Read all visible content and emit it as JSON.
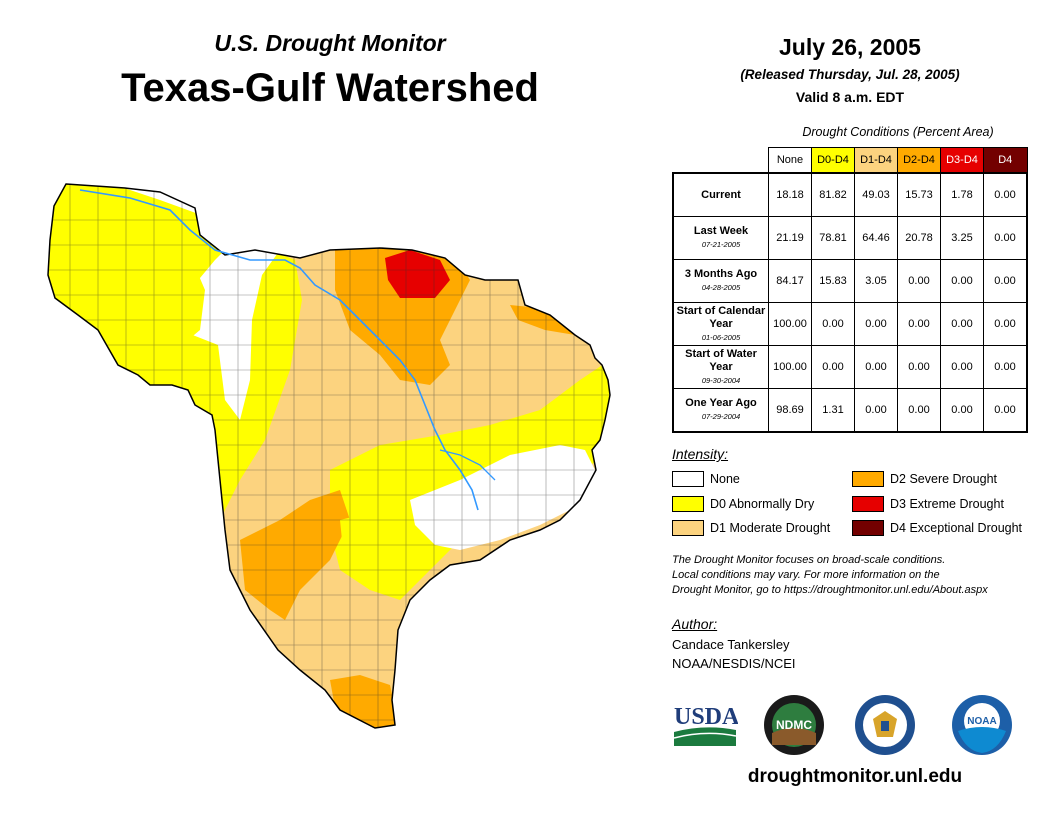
{
  "header": {
    "subtitle": "U.S. Drought Monitor",
    "title": "Texas-Gulf Watershed",
    "date": "July 26, 2005",
    "released": "(Released Thursday, Jul. 28, 2005)",
    "valid": "Valid 8 a.m. EDT"
  },
  "conditions": {
    "title": "Drought Conditions (Percent Area)",
    "columns": [
      "None",
      "D0-D4",
      "D1-D4",
      "D2-D4",
      "D3-D4",
      "D4"
    ],
    "column_colors": [
      "#ffffff",
      "#ffff00",
      "#fcd37f",
      "#ffaa00",
      "#e60000",
      "#730000"
    ],
    "rows": [
      {
        "label": "Current",
        "sub": "",
        "values": [
          "18.18",
          "81.82",
          "49.03",
          "15.73",
          "1.78",
          "0.00"
        ]
      },
      {
        "label": "Last Week",
        "sub": "07-21-2005",
        "values": [
          "21.19",
          "78.81",
          "64.46",
          "20.78",
          "3.25",
          "0.00"
        ]
      },
      {
        "label": "3 Months Ago",
        "sub": "04-28-2005",
        "values": [
          "84.17",
          "15.83",
          "3.05",
          "0.00",
          "0.00",
          "0.00"
        ]
      },
      {
        "label": "Start of Calendar Year",
        "sub": "01-06-2005",
        "values": [
          "100.00",
          "0.00",
          "0.00",
          "0.00",
          "0.00",
          "0.00"
        ]
      },
      {
        "label": "Start of Water Year",
        "sub": "09-30-2004",
        "values": [
          "100.00",
          "0.00",
          "0.00",
          "0.00",
          "0.00",
          "0.00"
        ]
      },
      {
        "label": "One Year Ago",
        "sub": "07-29-2004",
        "values": [
          "98.69",
          "1.31",
          "0.00",
          "0.00",
          "0.00",
          "0.00"
        ]
      }
    ]
  },
  "legend": {
    "title": "Intensity:",
    "items": [
      {
        "label": "None",
        "color": "#ffffff"
      },
      {
        "label": "D0 Abnormally Dry",
        "color": "#ffff00"
      },
      {
        "label": "D1 Moderate Drought",
        "color": "#fcd37f"
      },
      {
        "label": "D2 Severe Drought",
        "color": "#ffaa00"
      },
      {
        "label": "D3 Extreme Drought",
        "color": "#e60000"
      },
      {
        "label": "D4 Exceptional Drought",
        "color": "#730000"
      }
    ]
  },
  "note": {
    "line1": "The Drought Monitor focuses on broad-scale conditions.",
    "line2": "Local conditions may vary. For more information on the",
    "line3": "Drought Monitor, go to https://droughtmonitor.unl.edu/About.aspx"
  },
  "author": {
    "label": "Author:",
    "name": "Candace Tankersley",
    "org": "NOAA/NESDIS/NCEI"
  },
  "logos": {
    "usda": "USDA",
    "ndmc": "NDMC",
    "noaa": "NOAA"
  },
  "footer": {
    "url": "droughtmonitor.unl.edu"
  }
}
